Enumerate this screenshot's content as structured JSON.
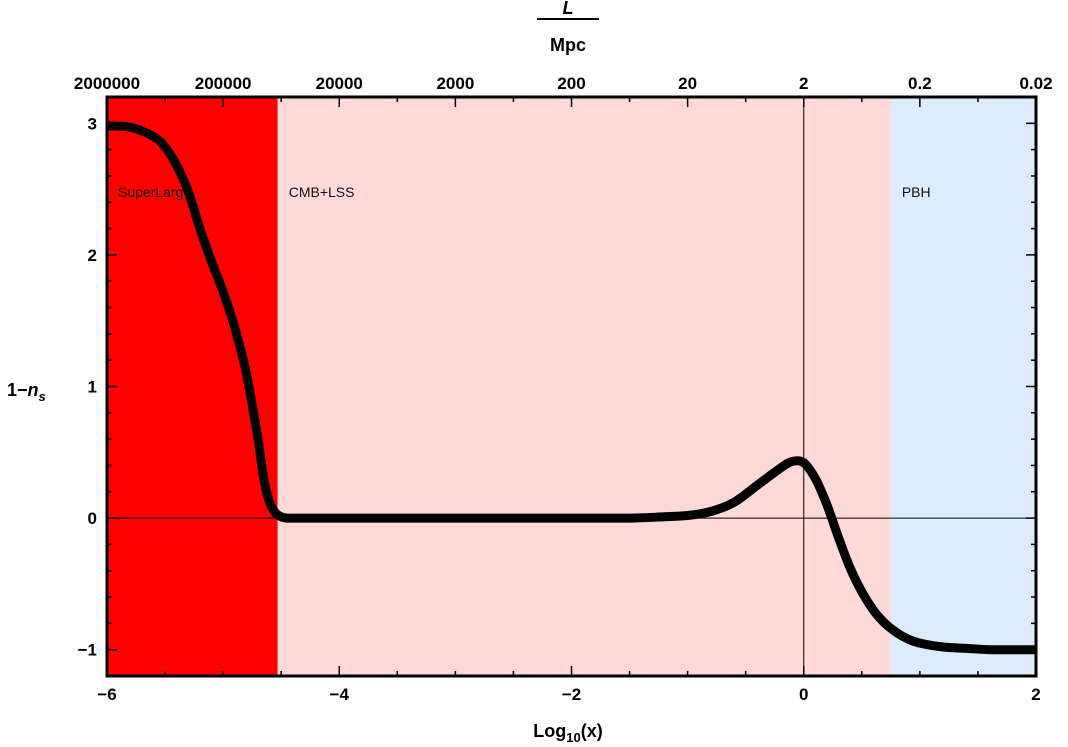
{
  "chart_data": {
    "type": "line",
    "xlabel": {
      "base": "Log",
      "sub": "10",
      "rest": "(x)"
    },
    "ylabel": {
      "prefix": "1−",
      "var": "n",
      "sub": "s"
    },
    "top_axis_label": {
      "numerator": "L",
      "denominator": "Mpc"
    },
    "xlim": [
      -6,
      2
    ],
    "ylim": [
      -1.2,
      3.2
    ],
    "x_ticks": [
      {
        "value": -6,
        "label": "−6"
      },
      {
        "value": -4,
        "label": "−4"
      },
      {
        "value": -2,
        "label": "−2"
      },
      {
        "value": 0,
        "label": "0"
      },
      {
        "value": 2,
        "label": "2"
      }
    ],
    "y_ticks": [
      {
        "value": -1,
        "label": "−1"
      },
      {
        "value": 0,
        "label": "0"
      },
      {
        "value": 1,
        "label": "1"
      },
      {
        "value": 2,
        "label": "2"
      },
      {
        "value": 3,
        "label": "3"
      }
    ],
    "top_ticks": [
      {
        "value": -6,
        "label": "2000000"
      },
      {
        "value": -5,
        "label": "200000"
      },
      {
        "value": -4,
        "label": "20000"
      },
      {
        "value": -3,
        "label": "2000"
      },
      {
        "value": -2,
        "label": "200"
      },
      {
        "value": -1,
        "label": "20"
      },
      {
        "value": 0,
        "label": "2"
      },
      {
        "value": 1,
        "label": "0.2"
      },
      {
        "value": 2,
        "label": "0.02"
      }
    ],
    "regions": [
      {
        "name": "SuperLarge",
        "label": "SuperLarg",
        "x_start": -6,
        "x_end": -4.53,
        "color": "#ff0000"
      },
      {
        "name": "CMB+LSS",
        "label": "CMB+LSS",
        "x_start": -4.53,
        "x_end": 0.75,
        "color": "#ffd8d8"
      },
      {
        "name": "PBH",
        "label": "PBH",
        "x_start": 0.75,
        "x_end": 2,
        "color": "#dcecfc"
      }
    ],
    "reference_lines": {
      "x": 0,
      "y": 0
    },
    "series": [
      {
        "color": "#000000",
        "x": [
          -6,
          -5.8,
          -5.6,
          -5.5,
          -5.4,
          -5.3,
          -5.2,
          -5.1,
          -5.0,
          -4.9,
          -4.8,
          -4.7,
          -4.65,
          -4.6,
          -4.55,
          -4.5,
          -4.45,
          -4.4,
          -4.2,
          -4.0,
          -3.0,
          -2.0,
          -1.5,
          -1.2,
          -1.0,
          -0.8,
          -0.6,
          -0.4,
          -0.2,
          -0.1,
          0.0,
          0.1,
          0.2,
          0.3,
          0.4,
          0.5,
          0.6,
          0.7,
          0.8,
          0.9,
          1.0,
          1.2,
          1.4,
          1.6,
          1.8,
          2.0
        ],
        "y": [
          2.98,
          2.97,
          2.9,
          2.82,
          2.68,
          2.48,
          2.2,
          1.95,
          1.72,
          1.45,
          1.1,
          0.6,
          0.3,
          0.12,
          0.04,
          0.01,
          0.0,
          0.0,
          0.0,
          0.0,
          0.0,
          0.0,
          0.0,
          0.01,
          0.02,
          0.05,
          0.12,
          0.25,
          0.38,
          0.43,
          0.42,
          0.3,
          0.1,
          -0.15,
          -0.38,
          -0.56,
          -0.7,
          -0.8,
          -0.87,
          -0.92,
          -0.95,
          -0.98,
          -0.99,
          -1.0,
          -1.0,
          -1.0
        ]
      }
    ]
  }
}
